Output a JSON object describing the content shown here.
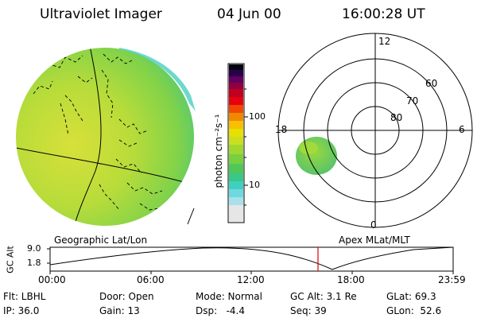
{
  "header": {
    "title": "Ultraviolet Imager",
    "date": "04 Jun 00",
    "time": "16:00:28 UT"
  },
  "colorbar": {
    "unit": "photon cm⁻²s⁻¹",
    "ticks": [
      "100",
      "10"
    ]
  },
  "polar_plot": {
    "mlt_labels": [
      "12",
      "18",
      "6",
      "0"
    ],
    "lat_labels": [
      "60",
      "70",
      "80"
    ]
  },
  "captions": {
    "left": "Geographic Lat/Lon",
    "right": "Apex MLat/MLT"
  },
  "altitude_plot": {
    "ylabel": "GC Alt",
    "yticks": [
      "9.0",
      "1.8"
    ],
    "xticks": [
      "00:00",
      "06:00",
      "12:00",
      "18:00",
      "23:59"
    ]
  },
  "info": {
    "row1": [
      "Flt: LBHL",
      "Door: Open",
      "Mode: Normal",
      "GC Alt: 3.1 Re",
      "GLat: 69.3"
    ],
    "row2": [
      "IP: 36.0",
      "Gain: 13",
      "Dsp:   -4.4",
      "Seq: 39",
      "GLon:  52.6"
    ]
  }
}
